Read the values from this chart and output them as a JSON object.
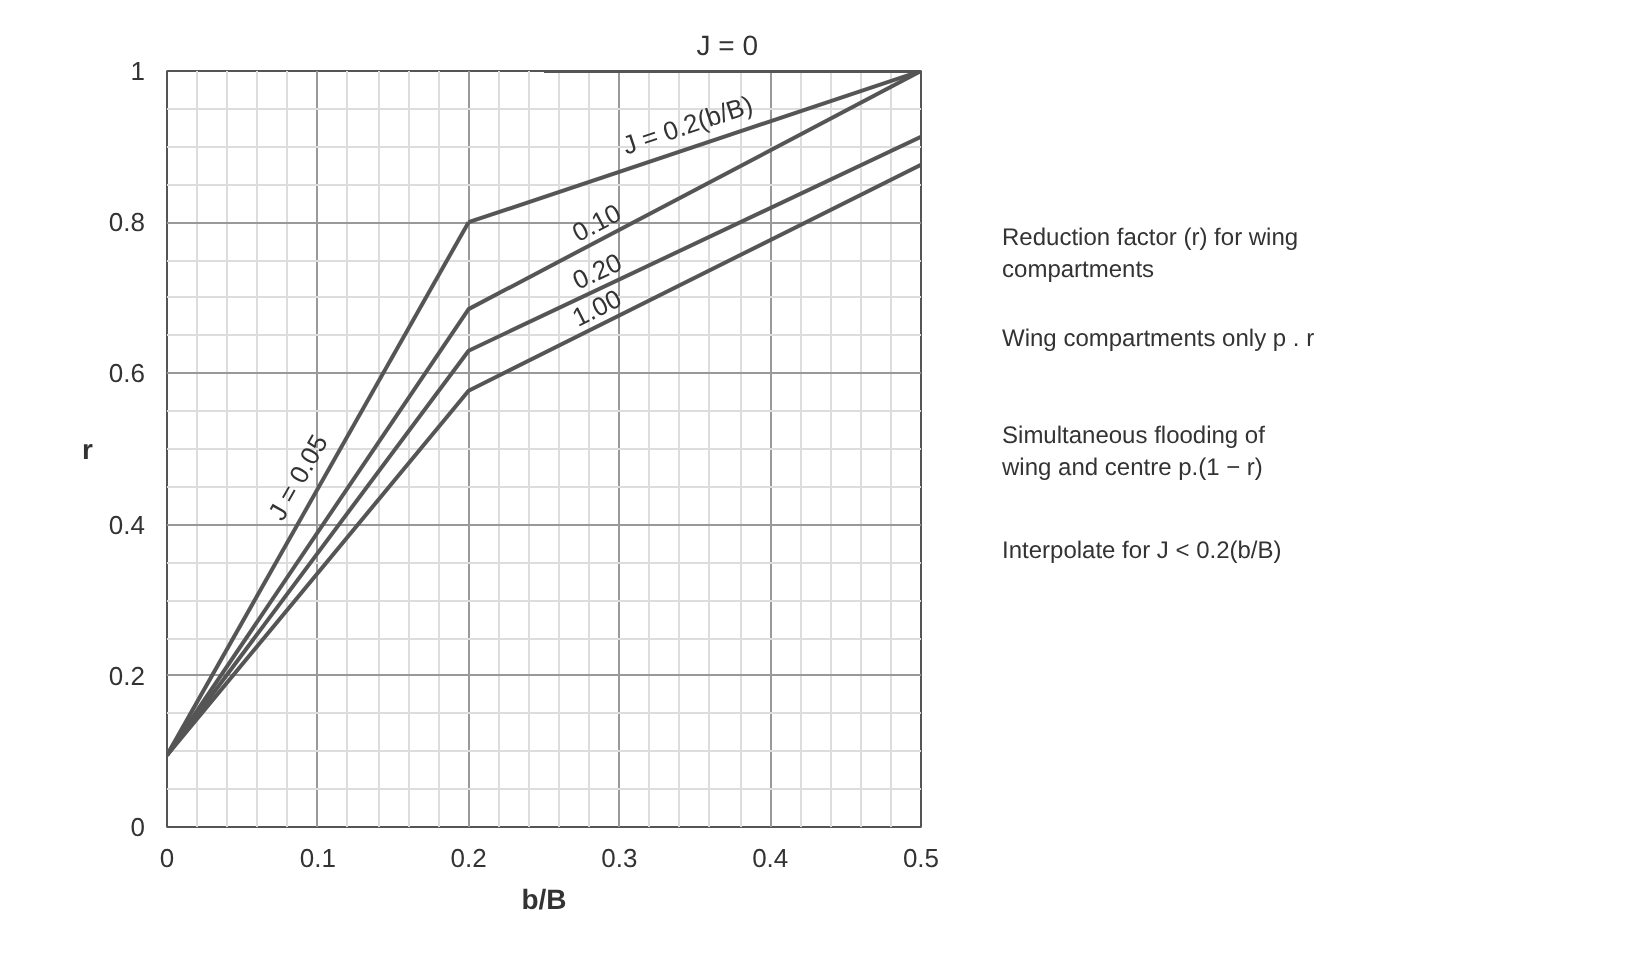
{
  "chart_data": {
    "type": "line",
    "xlabel": "b/B",
    "ylabel": "r",
    "xlim": [
      0,
      0.5
    ],
    "ylim": [
      0,
      1.0
    ],
    "xticks": [
      0,
      0.1,
      0.2,
      0.3,
      0.4,
      0.5
    ],
    "yticks": [
      0,
      0.2,
      0.4,
      0.6,
      0.8,
      1.0
    ],
    "grid": true,
    "line_style": "solid",
    "series": [
      {
        "name": "J = 0",
        "color": "#555555",
        "x": [
          0.25,
          0.5
        ],
        "values": [
          1.0,
          1.0
        ]
      },
      {
        "name": "J = 0.05",
        "color": "#555555",
        "x": [
          0,
          0.2
        ],
        "values": [
          0.095,
          0.8
        ]
      },
      {
        "name": "J = 0.2(b/B)",
        "color": "#555555",
        "x": [
          0.2,
          0.5
        ],
        "values": [
          0.8,
          1.0
        ]
      },
      {
        "name": "0.10",
        "color": "#555555",
        "x": [
          0,
          0.2,
          0.5
        ],
        "values": [
          0.095,
          0.685,
          1.0
        ]
      },
      {
        "name": "0.20",
        "color": "#555555",
        "x": [
          0,
          0.2,
          0.5
        ],
        "values": [
          0.095,
          0.63,
          0.913
        ]
      },
      {
        "name": "1.00",
        "color": "#555555",
        "x": [
          0,
          0.2,
          0.5
        ],
        "values": [
          0.095,
          0.577,
          0.876
        ]
      }
    ],
    "annotations": [
      "Reduction factor (r) for wing\ncompartments",
      "Wing compartments only  p . r",
      "Simultaneous flooding of\nwing and centre              p.(1 − r)",
      "Interpolate for J < 0.2(b/B)"
    ]
  }
}
